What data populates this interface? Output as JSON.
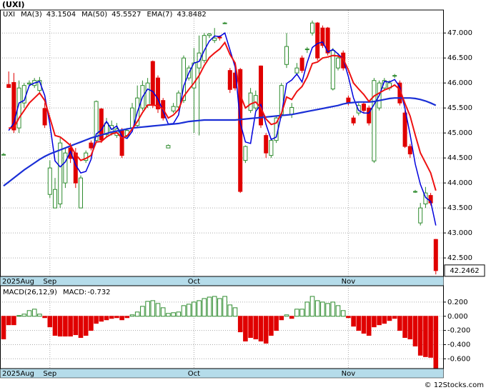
{
  "chart_data": [
    {
      "type": "candlestick",
      "title": "(UXI)",
      "name": "UXI",
      "categories": [
        "2025Aug",
        null,
        null,
        null,
        null,
        null,
        null,
        null,
        null,
        "Sep",
        null,
        null,
        null,
        null,
        null,
        null,
        null,
        null,
        null,
        null,
        null,
        null,
        null,
        null,
        null,
        null,
        null,
        null,
        null,
        null,
        null,
        null,
        null,
        null,
        null,
        null,
        null,
        "Oct",
        null,
        null,
        null,
        null,
        null,
        null,
        null,
        null,
        null,
        null,
        null,
        null,
        null,
        null,
        null,
        null,
        null,
        null,
        null,
        null,
        null,
        null,
        null,
        null,
        null,
        null,
        null,
        null,
        null,
        "Nov",
        null,
        null,
        null,
        null,
        null,
        null,
        null,
        null,
        null,
        null,
        null,
        null,
        null,
        null,
        null,
        null,
        null
      ],
      "open": [
        44.57,
        45.97,
        46.01,
        45.1,
        45.6,
        45.98,
        45.95,
        45.85,
        45.49,
        43.77,
        43.5,
        43.58,
        44.0,
        44.7,
        44.6,
        43.5,
        44.45,
        44.8,
        44.85,
        45.48,
        44.97,
        45.0,
        44.95,
        45.05,
        44.95,
        45.1,
        45.15,
        45.5,
        45.55,
        46.43,
        46.1,
        45.65,
        44.7,
        45.44,
        45.52,
        45.65,
        46.1,
        45.9,
        46.3,
        46.45,
        46.95,
        46.85,
        46.92,
        47.2,
        46.25,
        46.2,
        46.27,
        44.45,
        45.45,
        45.5,
        46.34,
        44.95,
        44.55,
        44.85,
        45.37,
        46.37,
        45.37,
        46.2,
        46.5,
        46.68,
        47.0,
        47.2,
        47.1,
        47.1,
        45.88,
        46.3,
        46.6,
        45.7,
        45.3,
        45.4,
        45.58,
        45.5,
        44.44,
        45.5,
        45.9,
        45.9,
        46.15,
        46.0,
        45.4,
        44.73,
        43.83,
        43.2,
        43.58,
        43.75,
        42.87
      ],
      "high": [
        44.6,
        46.23,
        46.2,
        46.05,
        46.0,
        46.05,
        46.1,
        46.12,
        45.6,
        44.45,
        44.1,
        44.9,
        44.7,
        44.8,
        44.7,
        44.15,
        44.65,
        44.85,
        45.65,
        45.5,
        45.3,
        45.25,
        45.2,
        45.1,
        45.1,
        45.6,
        45.95,
        46.05,
        46.1,
        46.45,
        46.15,
        45.7,
        44.77,
        45.6,
        45.85,
        46.55,
        46.35,
        46.7,
        46.95,
        47.0,
        47.0,
        47.1,
        46.95,
        47.22,
        46.3,
        46.25,
        46.3,
        44.75,
        45.9,
        45.85,
        46.35,
        45.0,
        44.9,
        45.35,
        46.0,
        47.0,
        45.6,
        46.4,
        46.55,
        46.72,
        47.25,
        47.22,
        47.15,
        47.12,
        46.7,
        46.6,
        46.65,
        45.75,
        45.35,
        45.6,
        45.62,
        45.55,
        46.1,
        46.05,
        46.1,
        46.05,
        46.18,
        46.05,
        45.45,
        44.78,
        43.86,
        43.6,
        43.92,
        43.8,
        42.88
      ],
      "low": [
        44.55,
        45.9,
        45.0,
        45.0,
        45.5,
        45.95,
        45.9,
        45.8,
        45.1,
        43.7,
        43.5,
        43.5,
        43.9,
        44.4,
        43.9,
        43.5,
        44.4,
        44.65,
        44.8,
        44.8,
        44.9,
        44.95,
        44.9,
        44.5,
        44.9,
        45.05,
        45.1,
        45.45,
        45.5,
        45.5,
        45.4,
        45.25,
        44.7,
        45.4,
        45.45,
        45.6,
        46.05,
        45.0,
        44.95,
        46.4,
        46.9,
        46.8,
        46.85,
        47.18,
        45.8,
        45.85,
        43.8,
        44.4,
        45.4,
        45.45,
        45.1,
        44.5,
        44.5,
        44.8,
        45.3,
        46.3,
        45.3,
        46.15,
        46.2,
        46.6,
        46.95,
        46.45,
        46.7,
        46.55,
        45.85,
        46.25,
        46.25,
        45.55,
        45.15,
        45.35,
        45.4,
        45.15,
        44.4,
        45.45,
        45.85,
        45.85,
        46.1,
        45.55,
        44.7,
        44.5,
        43.8,
        43.15,
        43.5,
        43.55,
        42.17
      ],
      "close": [
        44.57,
        45.91,
        45.06,
        45.9,
        45.95,
        46.0,
        46.05,
        46.05,
        45.16,
        44.3,
        43.87,
        44.8,
        44.6,
        44.49,
        44.0,
        44.1,
        44.6,
        44.7,
        45.63,
        44.86,
        45.2,
        45.15,
        45.08,
        44.55,
        45.05,
        45.5,
        45.7,
        45.95,
        46.0,
        45.55,
        45.48,
        45.3,
        44.75,
        45.53,
        45.8,
        46.5,
        46.3,
        46.4,
        46.6,
        46.95,
        46.98,
        46.9,
        46.9,
        47.2,
        45.87,
        45.9,
        43.83,
        44.73,
        45.8,
        45.75,
        45.16,
        44.6,
        44.85,
        45.3,
        45.95,
        46.73,
        45.51,
        46.3,
        46.25,
        46.68,
        47.2,
        46.5,
        46.75,
        46.6,
        46.65,
        46.5,
        46.3,
        45.6,
        45.2,
        45.55,
        45.45,
        45.2,
        46.05,
        46.0,
        46.05,
        46.0,
        46.15,
        45.6,
        44.73,
        44.58,
        43.83,
        43.5,
        43.8,
        43.6,
        42.2462
      ],
      "up_color": "#2e8b2e",
      "down_color": "#e00000",
      "name_color": "#2e8b2e",
      "series": [
        {
          "name": "MA(3)",
          "color": "#0000dd",
          "width": 1.5,
          "values": [
            null,
            45.05,
            45.2,
            45.6,
            45.65,
            45.95,
            46.0,
            46.03,
            45.75,
            45.17,
            44.44,
            44.32,
            44.42,
            44.63,
            44.36,
            44.2,
            44.23,
            44.47,
            44.98,
            45.06,
            45.23,
            45.07,
            45.14,
            44.93,
            44.89,
            45.03,
            45.42,
            45.72,
            45.88,
            45.83,
            45.68,
            45.44,
            45.18,
            45.19,
            45.36,
            45.94,
            46.2,
            46.4,
            46.43,
            46.65,
            46.84,
            46.94,
            46.93,
            47.0,
            46.66,
            46.32,
            45.2,
            44.82,
            44.79,
            45.43,
            45.57,
            45.17,
            44.87,
            44.92,
            45.37,
            45.99,
            46.06,
            46.18,
            46.02,
            46.41,
            46.71,
            46.79,
            46.82,
            46.62,
            46.67,
            46.58,
            46.48,
            46.13,
            45.7,
            45.45,
            45.4,
            45.4,
            45.57,
            45.75,
            46.03,
            46.02,
            46.07,
            45.92,
            45.49,
            44.97,
            44.38,
            43.97,
            43.71,
            43.63,
            43.1504
          ]
        },
        {
          "name": "MA(50)",
          "color": "#1a2fd6",
          "width": 2.2,
          "values": [
            43.94,
            44.02,
            44.1,
            44.18,
            44.26,
            44.33,
            44.4,
            44.47,
            44.53,
            44.58,
            44.62,
            44.66,
            44.7,
            44.74,
            44.78,
            44.82,
            44.86,
            44.9,
            44.93,
            44.96,
            44.99,
            45.02,
            45.04,
            45.06,
            45.08,
            45.1,
            45.11,
            45.12,
            45.13,
            45.14,
            45.15,
            45.16,
            45.17,
            45.18,
            45.19,
            45.21,
            45.23,
            45.24,
            45.25,
            45.26,
            45.26,
            45.26,
            45.26,
            45.26,
            45.26,
            45.26,
            45.27,
            45.28,
            45.29,
            45.3,
            45.31,
            45.32,
            45.33,
            45.34,
            45.35,
            45.36,
            45.37,
            45.39,
            45.41,
            45.43,
            45.45,
            45.47,
            45.49,
            45.51,
            45.53,
            45.55,
            45.58,
            45.6,
            45.61,
            45.62,
            45.62,
            45.62,
            45.63,
            45.65,
            45.67,
            45.69,
            45.7,
            45.7,
            45.7,
            45.7,
            45.69,
            45.67,
            45.64,
            45.6,
            45.5527
          ]
        },
        {
          "name": "EMA(7)",
          "color": "#ee1111",
          "width": 2,
          "values": [
            null,
            45.1,
            45.1,
            45.3,
            45.45,
            45.6,
            45.7,
            45.8,
            45.65,
            45.3,
            44.95,
            44.92,
            44.84,
            44.75,
            44.57,
            44.45,
            44.49,
            44.55,
            44.82,
            44.83,
            44.92,
            44.98,
            45.01,
            44.9,
            44.94,
            45.08,
            45.23,
            45.41,
            45.56,
            45.56,
            45.54,
            45.48,
            45.3,
            45.36,
            45.47,
            45.73,
            45.87,
            46.0,
            46.15,
            46.35,
            46.51,
            46.6,
            46.68,
            46.81,
            46.57,
            46.4,
            45.76,
            45.5,
            45.58,
            45.62,
            45.5,
            45.28,
            45.17,
            45.2,
            45.39,
            45.72,
            45.67,
            45.83,
            45.93,
            46.12,
            46.39,
            46.42,
            46.5,
            46.52,
            46.55,
            46.54,
            46.48,
            46.26,
            46.0,
            45.88,
            45.77,
            45.63,
            45.74,
            45.8,
            45.86,
            45.9,
            45.96,
            45.87,
            45.59,
            45.34,
            44.96,
            44.6,
            44.4,
            44.2,
            43.8482
          ]
        }
      ],
      "ylim": [
        42.13,
        47.46
      ],
      "yticks": [
        {
          "value": 42.5,
          "label": "42.500"
        },
        {
          "value": 43,
          "label": "43.000"
        },
        {
          "value": 43.5,
          "label": "43.500"
        },
        {
          "value": 44,
          "label": "44.000"
        },
        {
          "value": 44.5,
          "label": "44.500"
        },
        {
          "value": 45,
          "label": "45.000"
        },
        {
          "value": 45.5,
          "label": "45.500"
        },
        {
          "value": 46,
          "label": "46.000"
        },
        {
          "value": 46.5,
          "label": "46.500"
        },
        {
          "value": 47,
          "label": "47.000"
        }
      ],
      "grid": true
    },
    {
      "type": "bar",
      "title": "MACD(26,12,9)",
      "name": "MACD:",
      "categories": [
        "2025Aug",
        null,
        null,
        null,
        null,
        null,
        null,
        null,
        null,
        "Sep",
        null,
        null,
        null,
        null,
        null,
        null,
        null,
        null,
        null,
        null,
        null,
        null,
        null,
        null,
        null,
        null,
        null,
        null,
        null,
        null,
        null,
        null,
        null,
        null,
        null,
        null,
        null,
        "Oct",
        null,
        null,
        null,
        null,
        null,
        null,
        null,
        null,
        null,
        null,
        null,
        null,
        null,
        null,
        null,
        null,
        null,
        null,
        null,
        null,
        null,
        null,
        null,
        null,
        null,
        null,
        null,
        null,
        null,
        "Nov",
        null,
        null,
        null,
        null,
        null,
        null,
        null,
        null,
        null,
        null,
        null,
        null,
        null,
        null,
        null,
        null,
        null
      ],
      "values": [
        -0.32,
        -0.12,
        -0.12,
        0.01,
        0.03,
        0.08,
        0.1,
        0.03,
        -0.02,
        -0.15,
        -0.27,
        -0.28,
        -0.28,
        -0.28,
        -0.26,
        -0.3,
        -0.27,
        -0.2,
        -0.1,
        -0.07,
        -0.05,
        -0.03,
        -0.02,
        -0.05,
        -0.02,
        0.02,
        0.06,
        0.14,
        0.21,
        0.22,
        0.18,
        0.12,
        0.04,
        0.05,
        0.06,
        0.15,
        0.17,
        0.2,
        0.22,
        0.25,
        0.27,
        0.28,
        0.25,
        0.28,
        0.16,
        0.12,
        -0.22,
        -0.35,
        -0.3,
        -0.32,
        -0.35,
        -0.38,
        -0.27,
        -0.2,
        -0.05,
        0.02,
        -0.03,
        0.1,
        0.1,
        0.2,
        0.28,
        0.22,
        0.2,
        0.18,
        0.2,
        0.15,
        0.08,
        -0.02,
        -0.14,
        -0.2,
        -0.24,
        -0.27,
        -0.15,
        -0.12,
        -0.1,
        -0.06,
        -0.03,
        -0.2,
        -0.3,
        -0.32,
        -0.42,
        -0.55,
        -0.57,
        -0.58,
        -0.732
      ],
      "up_color": "#2e8b2e",
      "down_color": "#e00000",
      "name_color": "#0000dd",
      "ylim": [
        -0.738,
        0.431
      ],
      "yticks": [
        {
          "value": -0.6,
          "label": "-0.600"
        },
        {
          "value": -0.4,
          "label": "-0.400"
        },
        {
          "value": -0.2,
          "label": "-0.200"
        },
        {
          "value": 0,
          "label": "0.000"
        },
        {
          "value": 0.2,
          "label": "0.200"
        }
      ],
      "grid": true
    }
  ],
  "footer": "© 12Stocks.com"
}
